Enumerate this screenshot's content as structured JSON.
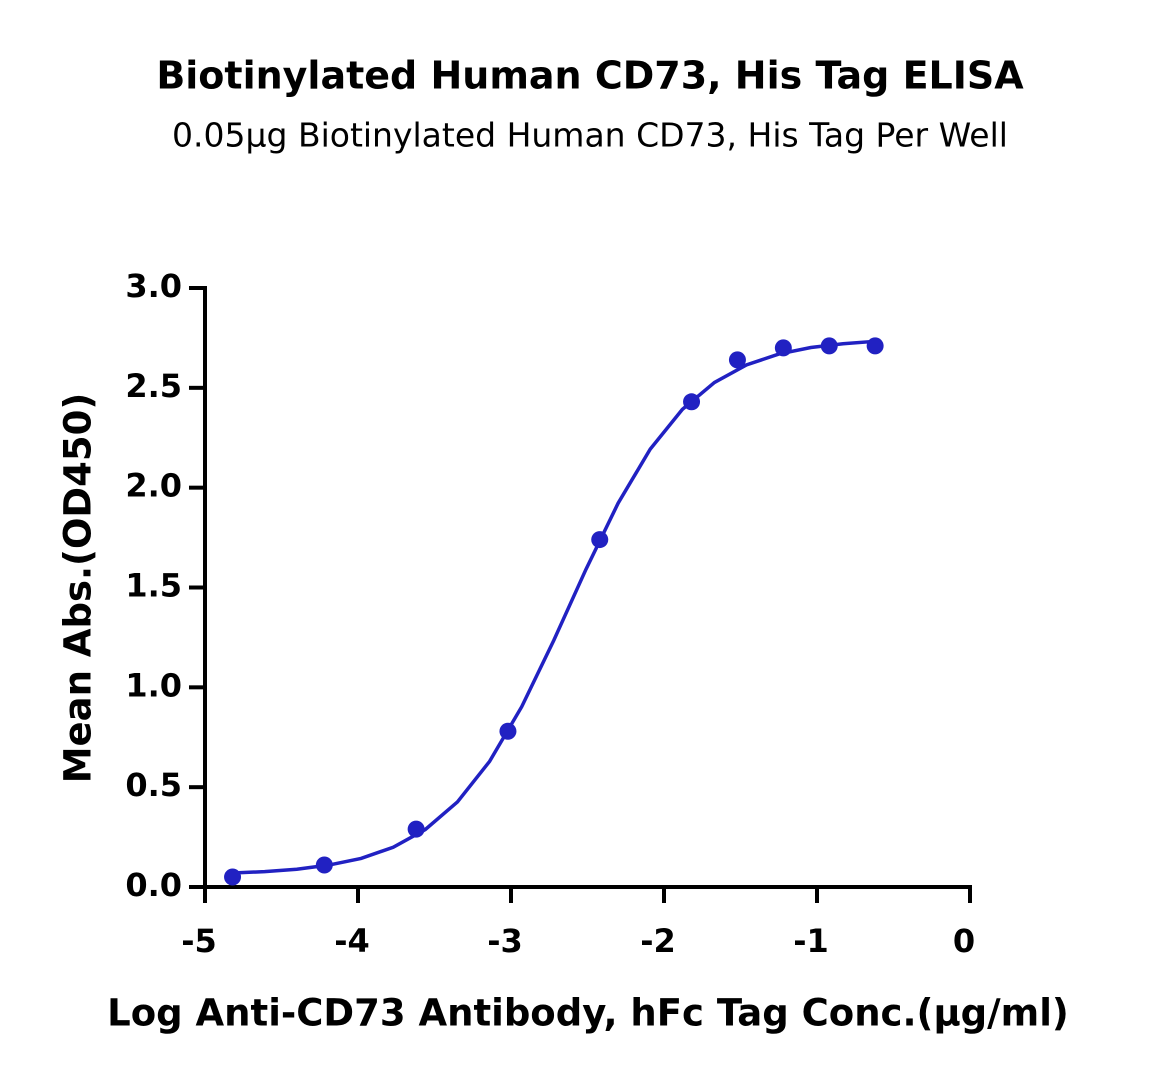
{
  "chart_data": {
    "type": "scatter",
    "title": "Biotinylated Human CD73, His Tag ELISA",
    "subtitle": "0.05μg Biotinylated Human CD73, His Tag Per Well",
    "x_label": "Log Anti-CD73 Antibody, hFc Tag Conc.(μg/ml)",
    "y_label": "Mean Abs.(OD450)",
    "color": "#2121c2",
    "x": [
      -4.82,
      -4.22,
      -3.62,
      -3.02,
      -2.42,
      -1.82,
      -1.52,
      -1.22,
      -0.92,
      -0.62
    ],
    "values": [
      0.05,
      0.11,
      0.29,
      0.78,
      1.74,
      2.43,
      2.64,
      2.7,
      2.71,
      2.71
    ],
    "curve": {
      "x": [
        -4.82,
        -4.61,
        -4.4,
        -4.19,
        -3.98,
        -3.77,
        -3.56,
        -3.35,
        -3.14,
        -2.93,
        -2.72,
        -2.51,
        -2.3,
        -2.09,
        -1.88,
        -1.67,
        -1.46,
        -1.25,
        -1.04,
        -0.83,
        -0.62
      ],
      "values": [
        0.07,
        0.077,
        0.089,
        0.11,
        0.143,
        0.199,
        0.288,
        0.426,
        0.629,
        0.903,
        1.236,
        1.591,
        1.922,
        2.193,
        2.392,
        2.527,
        2.615,
        2.669,
        2.702,
        2.721,
        2.733
      ]
    },
    "xlim": [
      -5,
      0
    ],
    "xticks": [
      -5,
      -4,
      -3,
      -2,
      -1,
      0
    ],
    "ylim": [
      0,
      3
    ],
    "yticks": [
      {
        "value": 0,
        "label": "0.0"
      },
      0.5,
      {
        "value": 1,
        "label": "1.0"
      },
      1.5,
      {
        "value": 2,
        "label": "2.0"
      },
      2.5,
      {
        "value": 3,
        "label": "3.0"
      }
    ]
  }
}
